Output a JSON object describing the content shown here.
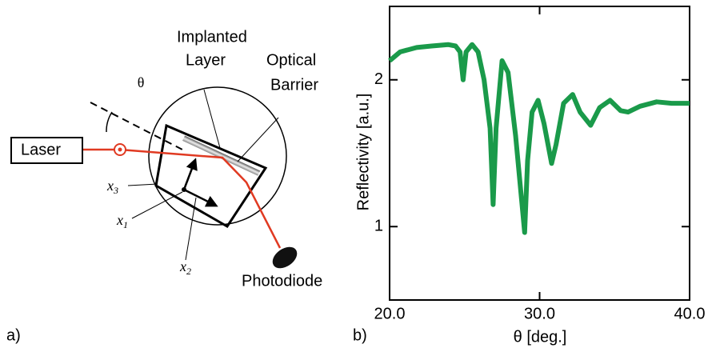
{
  "diagram": {
    "panel_label": "a)",
    "laser": "Laser",
    "angle": "θ",
    "implanted_layer": [
      "Implanted",
      "Layer"
    ],
    "optical_barrier": [
      "Optical",
      "Barrier"
    ],
    "photodiode": "Photodiode",
    "axes": [
      {
        "var": "x",
        "sub": "3"
      },
      {
        "var": "x",
        "sub": "1"
      },
      {
        "var": "x",
        "sub": "2"
      }
    ]
  },
  "chart_data": {
    "type": "line",
    "panel_label": "b)",
    "x_label": "θ [deg.]",
    "y_label": "Reflectivity [a.u.]",
    "xlim": [
      20,
      40
    ],
    "ylim": [
      0.5,
      2.5
    ],
    "xticks": [
      {
        "value": 20,
        "label": "20.0"
      },
      {
        "value": 30,
        "label": "30.0"
      },
      {
        "value": 40,
        "label": "40.0"
      }
    ],
    "yticks": [
      1,
      2
    ],
    "series": [
      {
        "color": "#1a9a4a",
        "x": [
          20.0,
          20.7,
          21.8,
          22.8,
          23.9,
          24.4,
          24.7,
          24.9,
          25.1,
          25.5,
          25.9,
          26.3,
          26.7,
          26.9,
          27.1,
          27.5,
          27.9,
          28.4,
          29.0,
          29.2,
          29.5,
          29.9,
          30.3,
          30.8,
          31.1,
          31.6,
          32.2,
          32.7,
          33.4,
          34.0,
          34.7,
          35.4,
          35.9,
          36.7,
          37.8,
          38.8,
          40.0
        ],
        "values": [
          2.13,
          2.19,
          2.22,
          2.23,
          2.24,
          2.23,
          2.19,
          2.0,
          2.19,
          2.24,
          2.19,
          2.0,
          1.67,
          1.15,
          1.67,
          2.13,
          2.05,
          1.62,
          0.96,
          1.45,
          1.78,
          1.86,
          1.7,
          1.43,
          1.56,
          1.84,
          1.9,
          1.78,
          1.69,
          1.81,
          1.86,
          1.79,
          1.78,
          1.82,
          1.85,
          1.84,
          1.84
        ]
      }
    ]
  }
}
